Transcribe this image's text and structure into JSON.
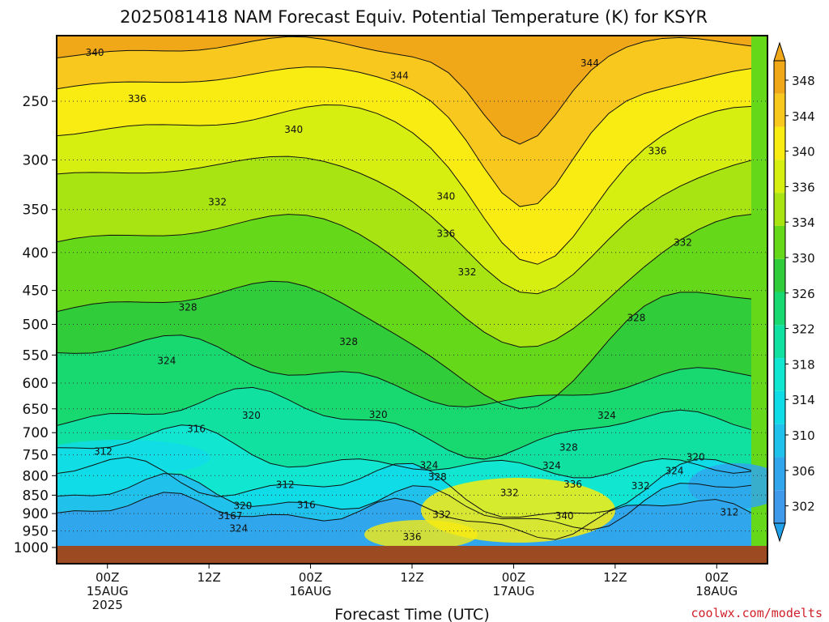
{
  "chart_data": {
    "type": "heatmap",
    "title": "2025081418 NAM Forecast Equiv. Potential Temperature (K) for KSYR",
    "xlabel": "Forecast Time (UTC)",
    "credit": "coolwx.com/modelts",
    "x_ticks": [
      {
        "hours": 6,
        "label": [
          "00Z",
          "15AUG",
          "2025"
        ]
      },
      {
        "hours": 18,
        "label": [
          "12Z"
        ]
      },
      {
        "hours": 30,
        "label": [
          "00Z",
          "16AUG"
        ]
      },
      {
        "hours": 42,
        "label": [
          "12Z"
        ]
      },
      {
        "hours": 54,
        "label": [
          "00Z",
          "17AUG"
        ]
      },
      {
        "hours": 66,
        "label": [
          "12Z"
        ]
      },
      {
        "hours": 78,
        "label": [
          "00Z",
          "18AUG"
        ]
      }
    ],
    "x_range_hours": [
      0,
      84
    ],
    "y_ticks_hpa": [
      250,
      300,
      350,
      400,
      450,
      500,
      550,
      600,
      650,
      700,
      750,
      800,
      850,
      900,
      950,
      1000
    ],
    "y_range_hpa": [
      200,
      1010
    ],
    "colorbar": {
      "labels": [
        348,
        344,
        340,
        336,
        334,
        330,
        326,
        322,
        318,
        314,
        310,
        306,
        302
      ],
      "colors": [
        "#f0a818",
        "#f8c81e",
        "#f8ec12",
        "#d6ee10",
        "#a8e412",
        "#66d81a",
        "#30cc3a",
        "#18d870",
        "#10e0a0",
        "#10e6d0",
        "#10dce8",
        "#20c2ec",
        "#30a6ec",
        "#409aec"
      ],
      "top_arrow_color": "#f0a818",
      "bottom_arrow_color": "#20a0e8"
    },
    "contour_labels": [
      {
        "hours": 4.5,
        "hpa": 215,
        "text": "340"
      },
      {
        "hours": 9.5,
        "hpa": 248,
        "text": "336"
      },
      {
        "hours": 19,
        "hpa": 342,
        "text": "332"
      },
      {
        "hours": 28,
        "hpa": 273,
        "text": "340"
      },
      {
        "hours": 40.5,
        "hpa": 231,
        "text": "344"
      },
      {
        "hours": 63,
        "hpa": 222,
        "text": "344"
      },
      {
        "hours": 46,
        "hpa": 336,
        "text": "340"
      },
      {
        "hours": 46,
        "hpa": 377,
        "text": "336"
      },
      {
        "hours": 48.5,
        "hpa": 425,
        "text": "332"
      },
      {
        "hours": 71,
        "hpa": 292,
        "text": "336"
      },
      {
        "hours": 74,
        "hpa": 388,
        "text": "332"
      },
      {
        "hours": 15.5,
        "hpa": 474,
        "text": "328"
      },
      {
        "hours": 34.5,
        "hpa": 528,
        "text": "328"
      },
      {
        "hours": 68.5,
        "hpa": 490,
        "text": "328"
      },
      {
        "hours": 13,
        "hpa": 560,
        "text": "324"
      },
      {
        "hours": 23,
        "hpa": 664,
        "text": "320"
      },
      {
        "hours": 38,
        "hpa": 662,
        "text": "320"
      },
      {
        "hours": 16.5,
        "hpa": 692,
        "text": "316"
      },
      {
        "hours": 5.5,
        "hpa": 742,
        "text": "312"
      },
      {
        "hours": 65,
        "hpa": 664,
        "text": "324"
      },
      {
        "hours": 60.5,
        "hpa": 733,
        "text": "328"
      },
      {
        "hours": 58.5,
        "hpa": 776,
        "text": "324"
      },
      {
        "hours": 44,
        "hpa": 775,
        "text": "324"
      },
      {
        "hours": 45,
        "hpa": 803,
        "text": "328"
      },
      {
        "hours": 53.5,
        "hpa": 844,
        "text": "332"
      },
      {
        "hours": 61,
        "hpa": 822,
        "text": "336"
      },
      {
        "hours": 69,
        "hpa": 826,
        "text": "332"
      },
      {
        "hours": 73,
        "hpa": 788,
        "text": "324"
      },
      {
        "hours": 75.5,
        "hpa": 755,
        "text": "320"
      },
      {
        "hours": 27,
        "hpa": 823,
        "text": "312"
      },
      {
        "hours": 29.5,
        "hpa": 876,
        "text": "316"
      },
      {
        "hours": 22,
        "hpa": 879,
        "text": "320"
      },
      {
        "hours": 20.5,
        "hpa": 907,
        "text": "3167"
      },
      {
        "hours": 21.5,
        "hpa": 943,
        "text": "324"
      },
      {
        "hours": 45.5,
        "hpa": 903,
        "text": "332"
      },
      {
        "hours": 60,
        "hpa": 906,
        "text": "340"
      },
      {
        "hours": 42,
        "hpa": 968,
        "text": "336"
      },
      {
        "hours": 79.5,
        "hpa": 896,
        "text": "312"
      }
    ]
  }
}
